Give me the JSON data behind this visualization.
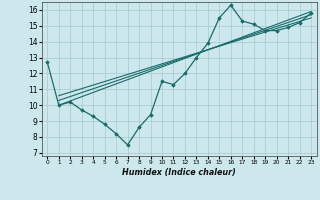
{
  "bg_color": "#cce8ec",
  "grid_color": "#aacdd4",
  "line_color": "#1a6b6b",
  "marker_color": "#1a6b6b",
  "xlabel": "Humidex (Indice chaleur)",
  "xlim": [
    -0.5,
    23.5
  ],
  "ylim": [
    6.8,
    16.5
  ],
  "xticks": [
    0,
    1,
    2,
    3,
    4,
    5,
    6,
    7,
    8,
    9,
    10,
    11,
    12,
    13,
    14,
    15,
    16,
    17,
    18,
    19,
    20,
    21,
    22,
    23
  ],
  "yticks": [
    7,
    8,
    9,
    10,
    11,
    12,
    13,
    14,
    15,
    16
  ],
  "series": [
    [
      0,
      12.7
    ],
    [
      1,
      10.0
    ],
    [
      2,
      10.2
    ],
    [
      3,
      9.7
    ],
    [
      4,
      9.3
    ],
    [
      5,
      8.8
    ],
    [
      6,
      8.2
    ],
    [
      7,
      7.5
    ],
    [
      8,
      8.6
    ],
    [
      9,
      9.4
    ],
    [
      10,
      11.5
    ],
    [
      11,
      11.3
    ],
    [
      12,
      12.0
    ],
    [
      13,
      13.0
    ],
    [
      14,
      13.9
    ],
    [
      15,
      15.5
    ],
    [
      16,
      16.3
    ],
    [
      17,
      15.3
    ],
    [
      18,
      15.1
    ],
    [
      19,
      14.7
    ],
    [
      20,
      14.7
    ],
    [
      21,
      14.9
    ],
    [
      22,
      15.2
    ],
    [
      23,
      15.8
    ]
  ],
  "line1_x": [
    1,
    23
  ],
  "line1_y": [
    10.0,
    15.9
  ],
  "line2_x": [
    1,
    23
  ],
  "line2_y": [
    10.3,
    15.7
  ],
  "line3_x": [
    1,
    23
  ],
  "line3_y": [
    10.6,
    15.5
  ]
}
